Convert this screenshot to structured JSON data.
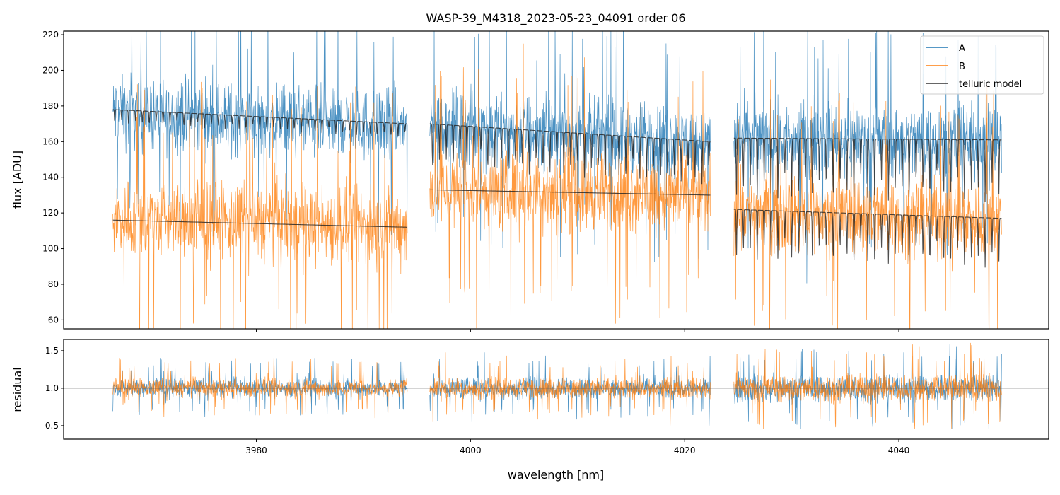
{
  "chart_data": {
    "type": "line",
    "title": "WASP-39_M4318_2023-05-23_04091  order 06",
    "xlabel": "wavelength [nm]",
    "x_ticks": [
      3980,
      4000,
      4020,
      4040
    ],
    "x_tick_labels": [
      "3980",
      "4000",
      "4020",
      "4040"
    ],
    "xlim": [
      3962.0,
      4054.0
    ],
    "colors": {
      "A": "#1f77b4",
      "B": "#ff7f0e",
      "telluric": "#000000"
    },
    "legend": {
      "position": "top-right",
      "entries": [
        {
          "label": "A",
          "color": "#1f77b4"
        },
        {
          "label": "B",
          "color": "#ff7f0e"
        },
        {
          "label": "telluric model",
          "color": "#333333"
        }
      ]
    },
    "segments": [
      {
        "x_start": 3966.6,
        "x_end": 3994.1
      },
      {
        "x_start": 3996.2,
        "x_end": 4022.4
      },
      {
        "x_start": 4024.6,
        "x_end": 4049.6
      }
    ],
    "top_panel": {
      "ylabel": "flux [ADU]",
      "ylim": [
        55,
        222
      ],
      "y_ticks": [
        60,
        80,
        100,
        120,
        140,
        160,
        180,
        200,
        220
      ],
      "y_tick_labels": [
        "60",
        "80",
        "100",
        "120",
        "140",
        "160",
        "180",
        "200",
        "220"
      ],
      "series": [
        {
          "name": "A",
          "segment_levels": [
            {
              "start": 176,
              "end": 168
            },
            {
              "start": 169,
              "end": 159
            },
            {
              "start": 162,
              "end": 160
            }
          ],
          "noise_amplitude": 30
        },
        {
          "name": "B",
          "segment_levels": [
            {
              "start": 117,
              "end": 112
            },
            {
              "start": 133,
              "end": 130
            },
            {
              "start": 121,
              "end": 116
            }
          ],
          "noise_amplitude": 32
        }
      ],
      "telluric_model": [
        {
          "name": "A continuum",
          "segment_levels": [
            {
              "start": 178,
              "end": 170
            },
            {
              "start": 170,
              "end": 160
            },
            {
              "start": 162,
              "end": 161
            }
          ],
          "line_depth": [
            8,
            25,
            35
          ]
        },
        {
          "name": "B continuum",
          "segment_levels": [
            {
              "start": 116,
              "end": 112
            },
            {
              "start": 133,
              "end": 130
            },
            {
              "start": 122,
              "end": 117
            }
          ],
          "line_depth": [
            0,
            0,
            28
          ]
        }
      ]
    },
    "bottom_panel": {
      "ylabel": "residual",
      "ylim": [
        0.32,
        1.65
      ],
      "y_ticks": [
        0.5,
        1.0,
        1.5
      ],
      "y_tick_labels": [
        "0.5",
        "1.0",
        "1.5"
      ],
      "reference_line": 1.0,
      "noise_amplitude": [
        0.18,
        0.2,
        0.27
      ]
    }
  }
}
